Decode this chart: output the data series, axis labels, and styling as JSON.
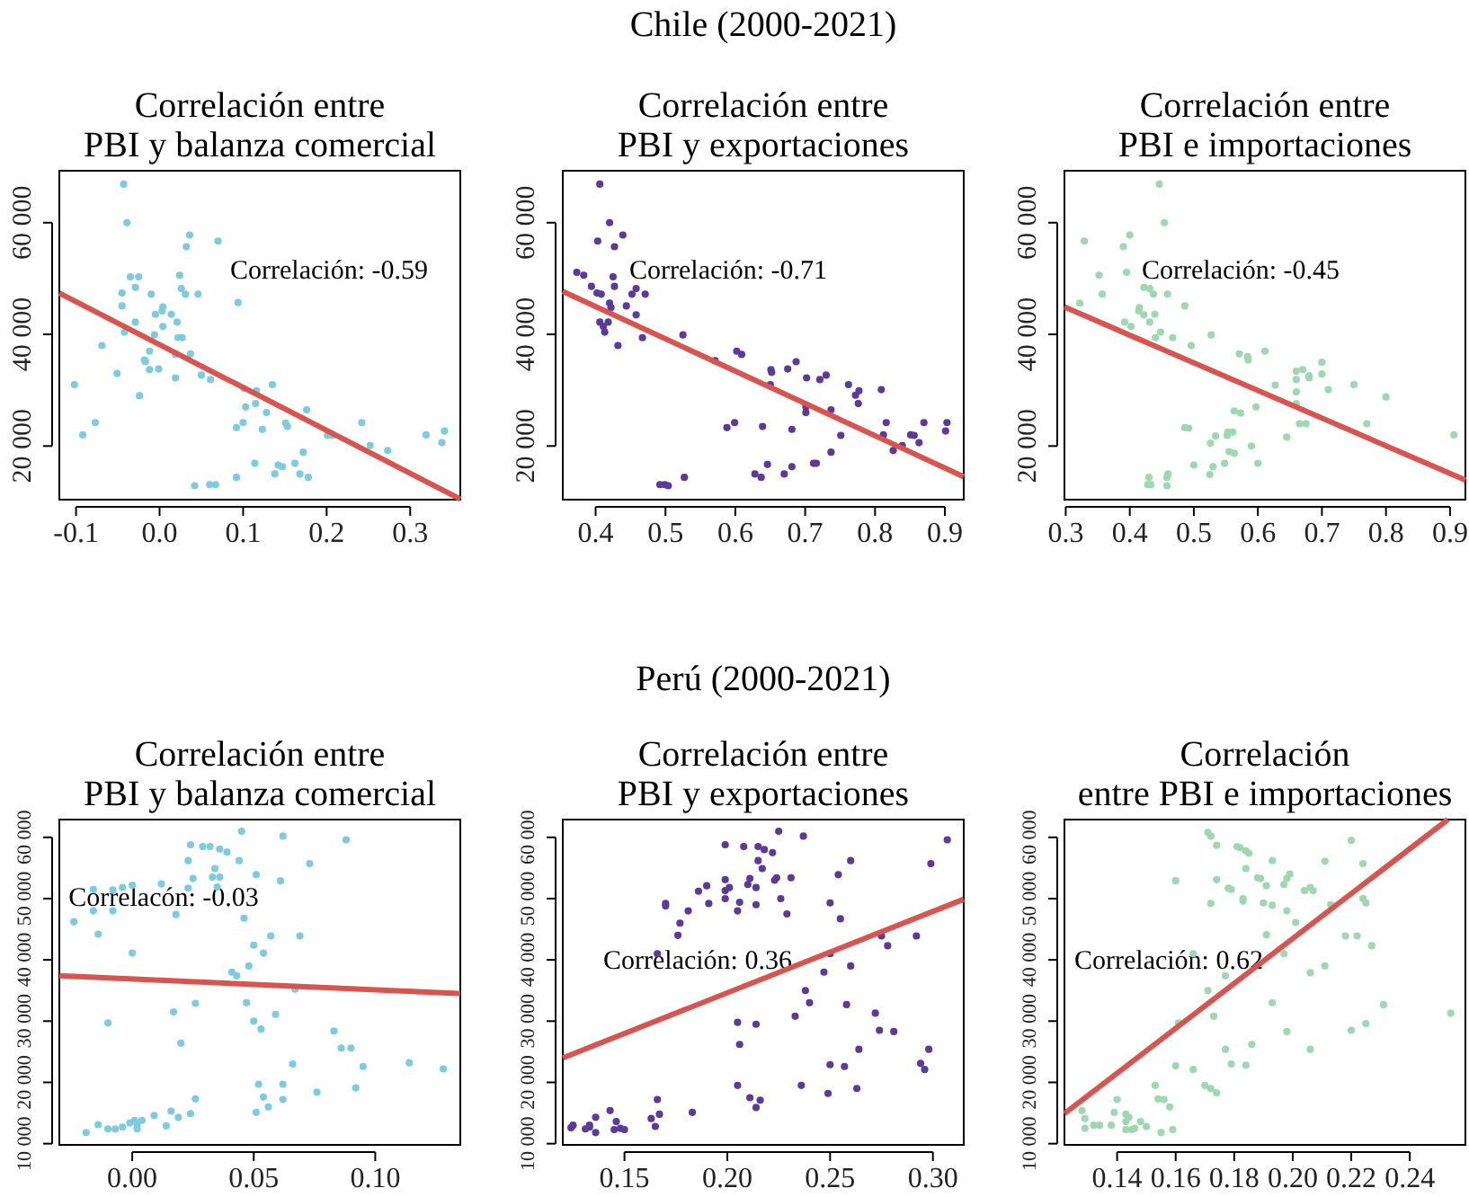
{
  "chart_data": [
    {
      "type": "scatter",
      "title": "Correlación entre\nPBI y balanza comercial",
      "annotations": [
        "Chile (2000-2021)",
        "Correlación: -0.59"
      ],
      "xlim": [
        -0.12,
        0.36
      ],
      "ylim": [
        10400,
        69300
      ],
      "xticks": [
        -0.1,
        {
          "value": 0,
          "label": "0.0"
        },
        0.1,
        0.2,
        0.3
      ],
      "yticks": [
        {
          "value": 20000,
          "label": "20 000"
        },
        {
          "value": 40000,
          "label": "40 000"
        },
        {
          "value": 60000,
          "label": "60 000"
        }
      ],
      "series": [
        {
          "marker": "circle",
          "color": "#7ecbe0",
          "x": [
            -0.043,
            -0.039,
            0.036,
            0.07,
            0.032,
            -0.035,
            -0.025,
            0.024,
            -0.045,
            -0.029,
            -0.01,
            0.026,
            0.031,
            0.046,
            0.094,
            -0.045,
            0.004,
            0.003,
            -0.005,
            0.014,
            -0.029,
            0.021,
            0.004,
            -0.042,
            -0.006,
            0.022,
            0.027,
            -0.069,
            -0.012,
            0.019,
            0.037,
            -0.018,
            -0.017,
            -0.012,
            -0.001,
            -0.051,
            0.05,
            0.019,
            0.061,
            -0.102,
            0.135,
            0.101,
            0.116,
            0.103,
            0.115,
            0.128,
            0.176,
            -0.077,
            0.1,
            0.151,
            0.153,
            0.092,
            0.123,
            0.242,
            -0.092,
            0.201,
            0.207,
            0.319,
            0.341,
            0.338,
            0.252,
            0.273,
            0.172,
            0.114,
            0.142,
            0.147,
            0.162,
            0.138,
            0.168,
            0.178,
            0.092,
            0.042,
            0.06,
            0.067,
            -0.024
          ],
          "values": [
            66900,
            60000,
            57800,
            56700,
            55700,
            50300,
            50300,
            50600,
            47400,
            48400,
            47200,
            48200,
            47200,
            47200,
            45700,
            45100,
            44900,
            44200,
            43600,
            43600,
            42200,
            42200,
            41400,
            40400,
            39900,
            39400,
            39400,
            38000,
            37000,
            36400,
            36500,
            35400,
            35100,
            33700,
            33800,
            33000,
            32700,
            32200,
            31900,
            31000,
            31000,
            30300,
            29900,
            27000,
            27600,
            26000,
            26500,
            24200,
            24200,
            24100,
            23500,
            23300,
            23000,
            24200,
            22000,
            21900,
            21900,
            22000,
            22700,
            20600,
            20100,
            19200,
            18900,
            16900,
            16600,
            16300,
            16900,
            15000,
            15000,
            14400,
            14400,
            12900,
            13100,
            13100,
            29000
          ]
        },
        {
          "type": "line",
          "color": "#d9534f",
          "x": [
            -0.12,
            0.36
          ],
          "values": [
            47400,
            10500
          ]
        }
      ]
    },
    {
      "type": "scatter",
      "title": "Correlación entre\nPBI y exportaciones",
      "annotations": [
        "Correlación: -0.71"
      ],
      "xlim": [
        0.353,
        0.927
      ],
      "ylim": [
        10400,
        69300
      ],
      "xticks": [
        0.4,
        0.5,
        0.6,
        0.7,
        0.8,
        0.9
      ],
      "yticks": [
        {
          "value": 20000,
          "label": "20 000"
        },
        {
          "value": 40000,
          "label": "40 000"
        },
        {
          "value": 60000,
          "label": "60 000"
        }
      ],
      "series": [
        {
          "marker": "circle",
          "color": "#5b3a9a",
          "x": [
            0.406,
            0.42,
            0.439,
            0.403,
            0.427,
            0.373,
            0.383,
            0.425,
            0.394,
            0.427,
            0.458,
            0.402,
            0.408,
            0.452,
            0.471,
            0.42,
            0.422,
            0.444,
            0.458,
            0.406,
            0.418,
            0.411,
            0.413,
            0.467,
            0.525,
            0.432,
            0.571,
            0.602,
            0.609,
            0.687,
            0.651,
            0.652,
            0.675,
            0.73,
            0.702,
            0.721,
            0.65,
            0.762,
            0.809,
            0.777,
            0.772,
            0.776,
            0.701,
            0.701,
            0.737,
            0.599,
            0.816,
            0.87,
            0.903,
            0.588,
            0.639,
            0.681,
            0.751,
            0.812,
            0.851,
            0.856,
            0.901,
            0.863,
            0.839,
            0.826,
            0.737,
            0.646,
            0.712,
            0.716,
            0.681,
            0.628,
            0.637,
            0.67,
            0.527,
            0.492,
            0.499,
            0.504
          ],
          "values": [
            66900,
            60000,
            57800,
            56700,
            55700,
            51100,
            50600,
            50300,
            48600,
            48600,
            48200,
            47400,
            47200,
            47200,
            47200,
            45600,
            44800,
            45100,
            43500,
            42200,
            42200,
            41400,
            40400,
            39400,
            39900,
            38000,
            35300,
            37000,
            36400,
            35100,
            33700,
            33200,
            33800,
            32700,
            32200,
            31900,
            31000,
            31000,
            30100,
            29900,
            29100,
            27600,
            27000,
            26000,
            26500,
            24200,
            24200,
            24200,
            24200,
            23300,
            23500,
            23000,
            21900,
            22000,
            22000,
            21900,
            22700,
            20600,
            20100,
            19200,
            18900,
            16700,
            16900,
            16900,
            16300,
            15000,
            14400,
            15000,
            14400,
            13100,
            13100,
            12900
          ]
        },
        {
          "type": "line",
          "color": "#d9534f",
          "x": [
            0.353,
            0.927
          ],
          "values": [
            47700,
            14500
          ]
        }
      ]
    },
    {
      "type": "scatter",
      "title": "Correlación entre\nPBI e importaciones",
      "annotations": [
        "Correlación: -0.45"
      ],
      "xlim": [
        0.298,
        0.924
      ],
      "ylim": [
        10400,
        69300
      ],
      "xticks": [
        0.3,
        0.4,
        0.5,
        0.6,
        0.7,
        0.8,
        0.9
      ],
      "yticks": [
        {
          "value": 20000,
          "label": "20 000"
        },
        {
          "value": 40000,
          "label": "40 000"
        },
        {
          "value": 60000,
          "label": "60 000"
        }
      ],
      "series": [
        {
          "marker": "circle",
          "color": "#9fd8b0",
          "x": [
            0.446,
            0.454,
            0.4,
            0.329,
            0.39,
            0.352,
            0.395,
            0.422,
            0.431,
            0.357,
            0.437,
            0.459,
            0.322,
            0.486,
            0.415,
            0.414,
            0.422,
            0.439,
            0.392,
            0.431,
            0.402,
            0.448,
            0.44,
            0.467,
            0.527,
            0.496,
            0.571,
            0.584,
            0.585,
            0.611,
            0.66,
            0.67,
            0.68,
            0.68,
            0.7,
            0.7,
            0.66,
            0.71,
            0.627,
            0.66,
            0.66,
            0.75,
            0.8,
            0.597,
            0.563,
            0.573,
            0.486,
            0.492,
            0.665,
            0.675,
            0.77,
            0.553,
            0.561,
            0.534,
            0.552,
            0.645,
            0.906,
            0.526,
            0.59,
            0.555,
            0.563,
            0.5,
            0.53,
            0.548,
            0.6,
            0.525,
            0.43,
            0.458,
            0.46,
            0.428,
            0.433,
            0.458
          ],
          "values": [
            66900,
            60000,
            57800,
            56700,
            55700,
            50600,
            51100,
            48400,
            48200,
            47200,
            47200,
            47200,
            45600,
            45100,
            44800,
            44200,
            43500,
            43600,
            42200,
            42200,
            41400,
            40400,
            39400,
            39400,
            39900,
            38000,
            36500,
            36000,
            35400,
            37000,
            33400,
            33700,
            32600,
            32200,
            32900,
            35000,
            31900,
            30100,
            30900,
            29700,
            27600,
            31000,
            28800,
            27000,
            26300,
            25900,
            23300,
            23200,
            24000,
            24000,
            24000,
            22500,
            22500,
            21800,
            21900,
            21600,
            22000,
            20500,
            20000,
            19000,
            18700,
            16600,
            16300,
            16900,
            16900,
            14900,
            14400,
            14400,
            15000,
            13100,
            13100,
            12900
          ]
        },
        {
          "type": "line",
          "color": "#d9534f",
          "x": [
            0.298,
            0.924
          ],
          "values": [
            44900,
            13900
          ]
        }
      ]
    },
    {
      "type": "scatter",
      "title": "Correlación entre\nPBI y balanza comercial",
      "annotations": [
        "Perú (2000-2021)",
        "Correlacón: -0.03"
      ],
      "xlim": [
        -0.03,
        0.135
      ],
      "ylim": [
        9800,
        62900
      ],
      "xticks": [
        {
          "value": 0,
          "label": "0.00"
        },
        0.05,
        {
          "value": 0.1,
          "label": "0.10"
        }
      ],
      "yticks": [
        {
          "value": 10000,
          "label": "10 000"
        },
        {
          "value": 20000,
          "label": "20 000"
        },
        {
          "value": 30000,
          "label": "30 000"
        },
        {
          "value": 40000,
          "label": "40 000"
        },
        {
          "value": 50000,
          "label": "50 000"
        },
        {
          "value": 60000,
          "label": "60 000"
        }
      ],
      "series": [
        {
          "marker": "circle",
          "color": "#7ecbe0",
          "x": [
            0.045,
            0.062,
            0.088,
            0.024,
            0.029,
            0.032,
            0.036,
            0.039,
            0.023,
            0.044,
            0.073,
            0.034,
            0.051,
            0.025,
            0.033,
            0.036,
            0.061,
            0.012,
            0.0,
            -0.004,
            -0.016,
            -0.008,
            0.023,
            0.035,
            -0.024,
            -0.016,
            -0.008,
            0.018,
            0.046,
            -0.014,
            0.057,
            0.069,
            0.05,
            0.054,
            0.0,
            0.048,
            0.041,
            0.043,
            0.047,
            0.026,
            0.067,
            0.017,
            -0.01,
            0.05,
            0.059,
            0.053,
            0.083,
            0.086,
            0.09,
            0.02,
            0.066,
            0.095,
            0.114,
            0.128,
            0.092,
            0.052,
            0.062,
            0.054,
            0.076,
            0.056,
            0.062,
            0.051,
            0.026,
            0.016,
            0.024,
            0.009,
            0.019,
            0.014,
            -0.019,
            -0.014,
            -0.01,
            -0.007,
            -0.004,
            -0.001,
            0.001,
            0.002,
            0.002,
            0.004
          ],
          "values": [
            61000,
            60200,
            59600,
            58800,
            58500,
            58500,
            58100,
            57600,
            56200,
            56200,
            55700,
            54900,
            53900,
            53300,
            53500,
            53500,
            52900,
            52400,
            52200,
            51800,
            51500,
            51400,
            51700,
            51900,
            46200,
            48000,
            48000,
            47400,
            46800,
            44200,
            43900,
            43900,
            42400,
            41100,
            41100,
            39000,
            38000,
            37400,
            33000,
            32900,
            35200,
            31500,
            29700,
            30000,
            31100,
            28700,
            28400,
            25600,
            25600,
            26400,
            23000,
            22600,
            23200,
            22200,
            19100,
            19700,
            19700,
            17600,
            18400,
            16000,
            17200,
            15100,
            17300,
            15300,
            14900,
            14600,
            14300,
            12900,
            11800,
            13100,
            12400,
            12400,
            12700,
            13400,
            13800,
            13100,
            12400,
            13800
          ]
        },
        {
          "type": "line",
          "color": "#d9534f",
          "x": [
            -0.03,
            0.135
          ],
          "values": [
            37400,
            34500
          ]
        }
      ]
    },
    {
      "type": "scatter",
      "title": "Correlación entre\nPBI y exportaciones",
      "annotations": [
        "Correlación: 0.36"
      ],
      "xlim": [
        0.12,
        0.315
      ],
      "ylim": [
        9800,
        62900
      ],
      "xticks": [
        0.15,
        {
          "value": 0.2,
          "label": "0.20"
        },
        0.25,
        {
          "value": 0.3,
          "label": "0.30"
        }
      ],
      "yticks": [
        {
          "value": 10000,
          "label": "10 000"
        },
        {
          "value": 20000,
          "label": "20 000"
        },
        {
          "value": 30000,
          "label": "30 000"
        },
        {
          "value": 40000,
          "label": "40 000"
        },
        {
          "value": 50000,
          "label": "50 000"
        },
        {
          "value": 60000,
          "label": "60 000"
        }
      ],
      "series": [
        {
          "marker": "circle",
          "color": "#5b3a9a",
          "x": [
            0.225,
            0.237,
            0.307,
            0.199,
            0.208,
            0.215,
            0.218,
            0.222,
            0.215,
            0.26,
            0.299,
            0.217,
            0.254,
            0.211,
            0.223,
            0.224,
            0.231,
            0.199,
            0.19,
            0.186,
            0.199,
            0.201,
            0.21,
            0.214,
            0.17,
            0.17,
            0.191,
            0.199,
            0.206,
            0.214,
            0.226,
            0.25,
            0.181,
            0.205,
            0.229,
            0.177,
            0.255,
            0.176,
            0.275,
            0.292,
            0.278,
            0.166,
            0.25,
            0.26,
            0.247,
            0.238,
            0.24,
            0.258,
            0.233,
            0.272,
            0.205,
            0.214,
            0.274,
            0.281,
            0.206,
            0.264,
            0.298,
            0.25,
            0.257,
            0.294,
            0.296,
            0.205,
            0.236,
            0.263,
            0.249,
            0.211,
            0.216,
            0.214,
            0.166,
            0.183,
            0.163,
            0.167,
            0.165,
            0.143,
            0.136,
            0.146,
            0.148,
            0.15,
            0.145,
            0.133,
            0.131,
            0.133,
            0.124,
            0.125,
            0.136
          ],
          "values": [
            61000,
            60200,
            59600,
            58800,
            58500,
            58500,
            58000,
            57500,
            56200,
            56200,
            55700,
            54900,
            53900,
            53300,
            53000,
            53400,
            53400,
            53100,
            52100,
            51200,
            51300,
            51800,
            52300,
            51800,
            49200,
            48800,
            49200,
            50000,
            49400,
            49000,
            50000,
            49300,
            48000,
            48000,
            47500,
            46000,
            46700,
            44000,
            43900,
            43900,
            42300,
            41000,
            41000,
            39000,
            38000,
            35000,
            33000,
            32700,
            30800,
            31300,
            29800,
            29500,
            28500,
            28300,
            26200,
            25400,
            25400,
            22900,
            22600,
            23100,
            22100,
            19500,
            19500,
            19000,
            18200,
            17500,
            17100,
            15900,
            17200,
            15100,
            14100,
            14800,
            12800,
            15400,
            14300,
            13600,
            12500,
            12300,
            12300,
            13000,
            12400,
            12700,
            12600,
            13000,
            11800
          ]
        },
        {
          "type": "line",
          "color": "#d9534f",
          "x": [
            0.12,
            0.315
          ],
          "values": [
            24000,
            49900
          ]
        }
      ]
    },
    {
      "type": "scatter",
      "title": "Correlación\nentre PBI e importaciones",
      "annotations": [
        "Correlación: 0.62"
      ],
      "xlim": [
        0.122,
        0.259
      ],
      "ylim": [
        9800,
        62900
      ],
      "xticks": [
        0.14,
        0.16,
        0.18,
        {
          "value": 0.2,
          "label": "0.20"
        },
        0.22,
        0.24
      ],
      "yticks": [
        {
          "value": 10000,
          "label": "10 000"
        },
        {
          "value": 20000,
          "label": "20 000"
        },
        {
          "value": 30000,
          "label": "30 000"
        },
        {
          "value": 40000,
          "label": "40 000"
        },
        {
          "value": 50000,
          "label": "50 000"
        },
        {
          "value": 60000,
          "label": "60 000"
        }
      ],
      "series": [
        {
          "marker": "circle",
          "color": "#9fd8b0",
          "x": [
            0.171,
            0.172,
            0.174,
            0.181,
            0.182,
            0.184,
            0.185,
            0.193,
            0.211,
            0.22,
            0.224,
            0.184,
            0.16,
            0.174,
            0.188,
            0.189,
            0.198,
            0.199,
            0.197,
            0.191,
            0.178,
            0.179,
            0.204,
            0.206,
            0.207,
            0.183,
            0.183,
            0.172,
            0.19,
            0.193,
            0.198,
            0.213,
            0.224,
            0.225,
            0.201,
            0.191,
            0.218,
            0.222,
            0.227,
            0.166,
            0.197,
            0.211,
            0.206,
            0.177,
            0.171,
            0.193,
            0.231,
            0.173,
            0.161,
            0.225,
            0.22,
            0.198,
            0.186,
            0.177,
            0.206,
            0.179,
            0.184,
            0.16,
            0.166,
            0.172,
            0.17,
            0.174,
            0.153,
            0.154,
            0.156,
            0.158,
            0.254,
            0.128,
            0.129,
            0.14,
            0.139,
            0.143,
            0.144,
            0.143,
            0.148,
            0.15,
            0.134,
            0.132,
            0.138,
            0.129,
            0.143,
            0.145,
            0.146,
            0.155,
            0.159
          ],
          "values": [
            60800,
            60200,
            58700,
            58500,
            58300,
            57800,
            57400,
            56200,
            56100,
            59500,
            55700,
            54900,
            52900,
            53100,
            53400,
            53300,
            53300,
            54000,
            52300,
            52100,
            51700,
            51500,
            51300,
            51800,
            51300,
            50000,
            49600,
            49200,
            49300,
            48900,
            48000,
            49000,
            50000,
            49300,
            46100,
            44100,
            43900,
            43900,
            42300,
            41000,
            41000,
            39000,
            37900,
            37400,
            35000,
            33000,
            32700,
            30800,
            29700,
            29600,
            28500,
            28300,
            26200,
            25400,
            25400,
            23000,
            22800,
            22700,
            22100,
            19000,
            19500,
            18300,
            19500,
            17300,
            17200,
            16000,
            31300,
            15400,
            14100,
            17200,
            15100,
            14800,
            14300,
            13600,
            13600,
            12800,
            13000,
            13000,
            13000,
            12500,
            12300,
            12300,
            12500,
            11800,
            12300
          ]
        },
        {
          "type": "line",
          "color": "#d9534f",
          "x": [
            0.122,
            0.253
          ],
          "values": [
            14900,
            62900
          ]
        }
      ]
    }
  ]
}
